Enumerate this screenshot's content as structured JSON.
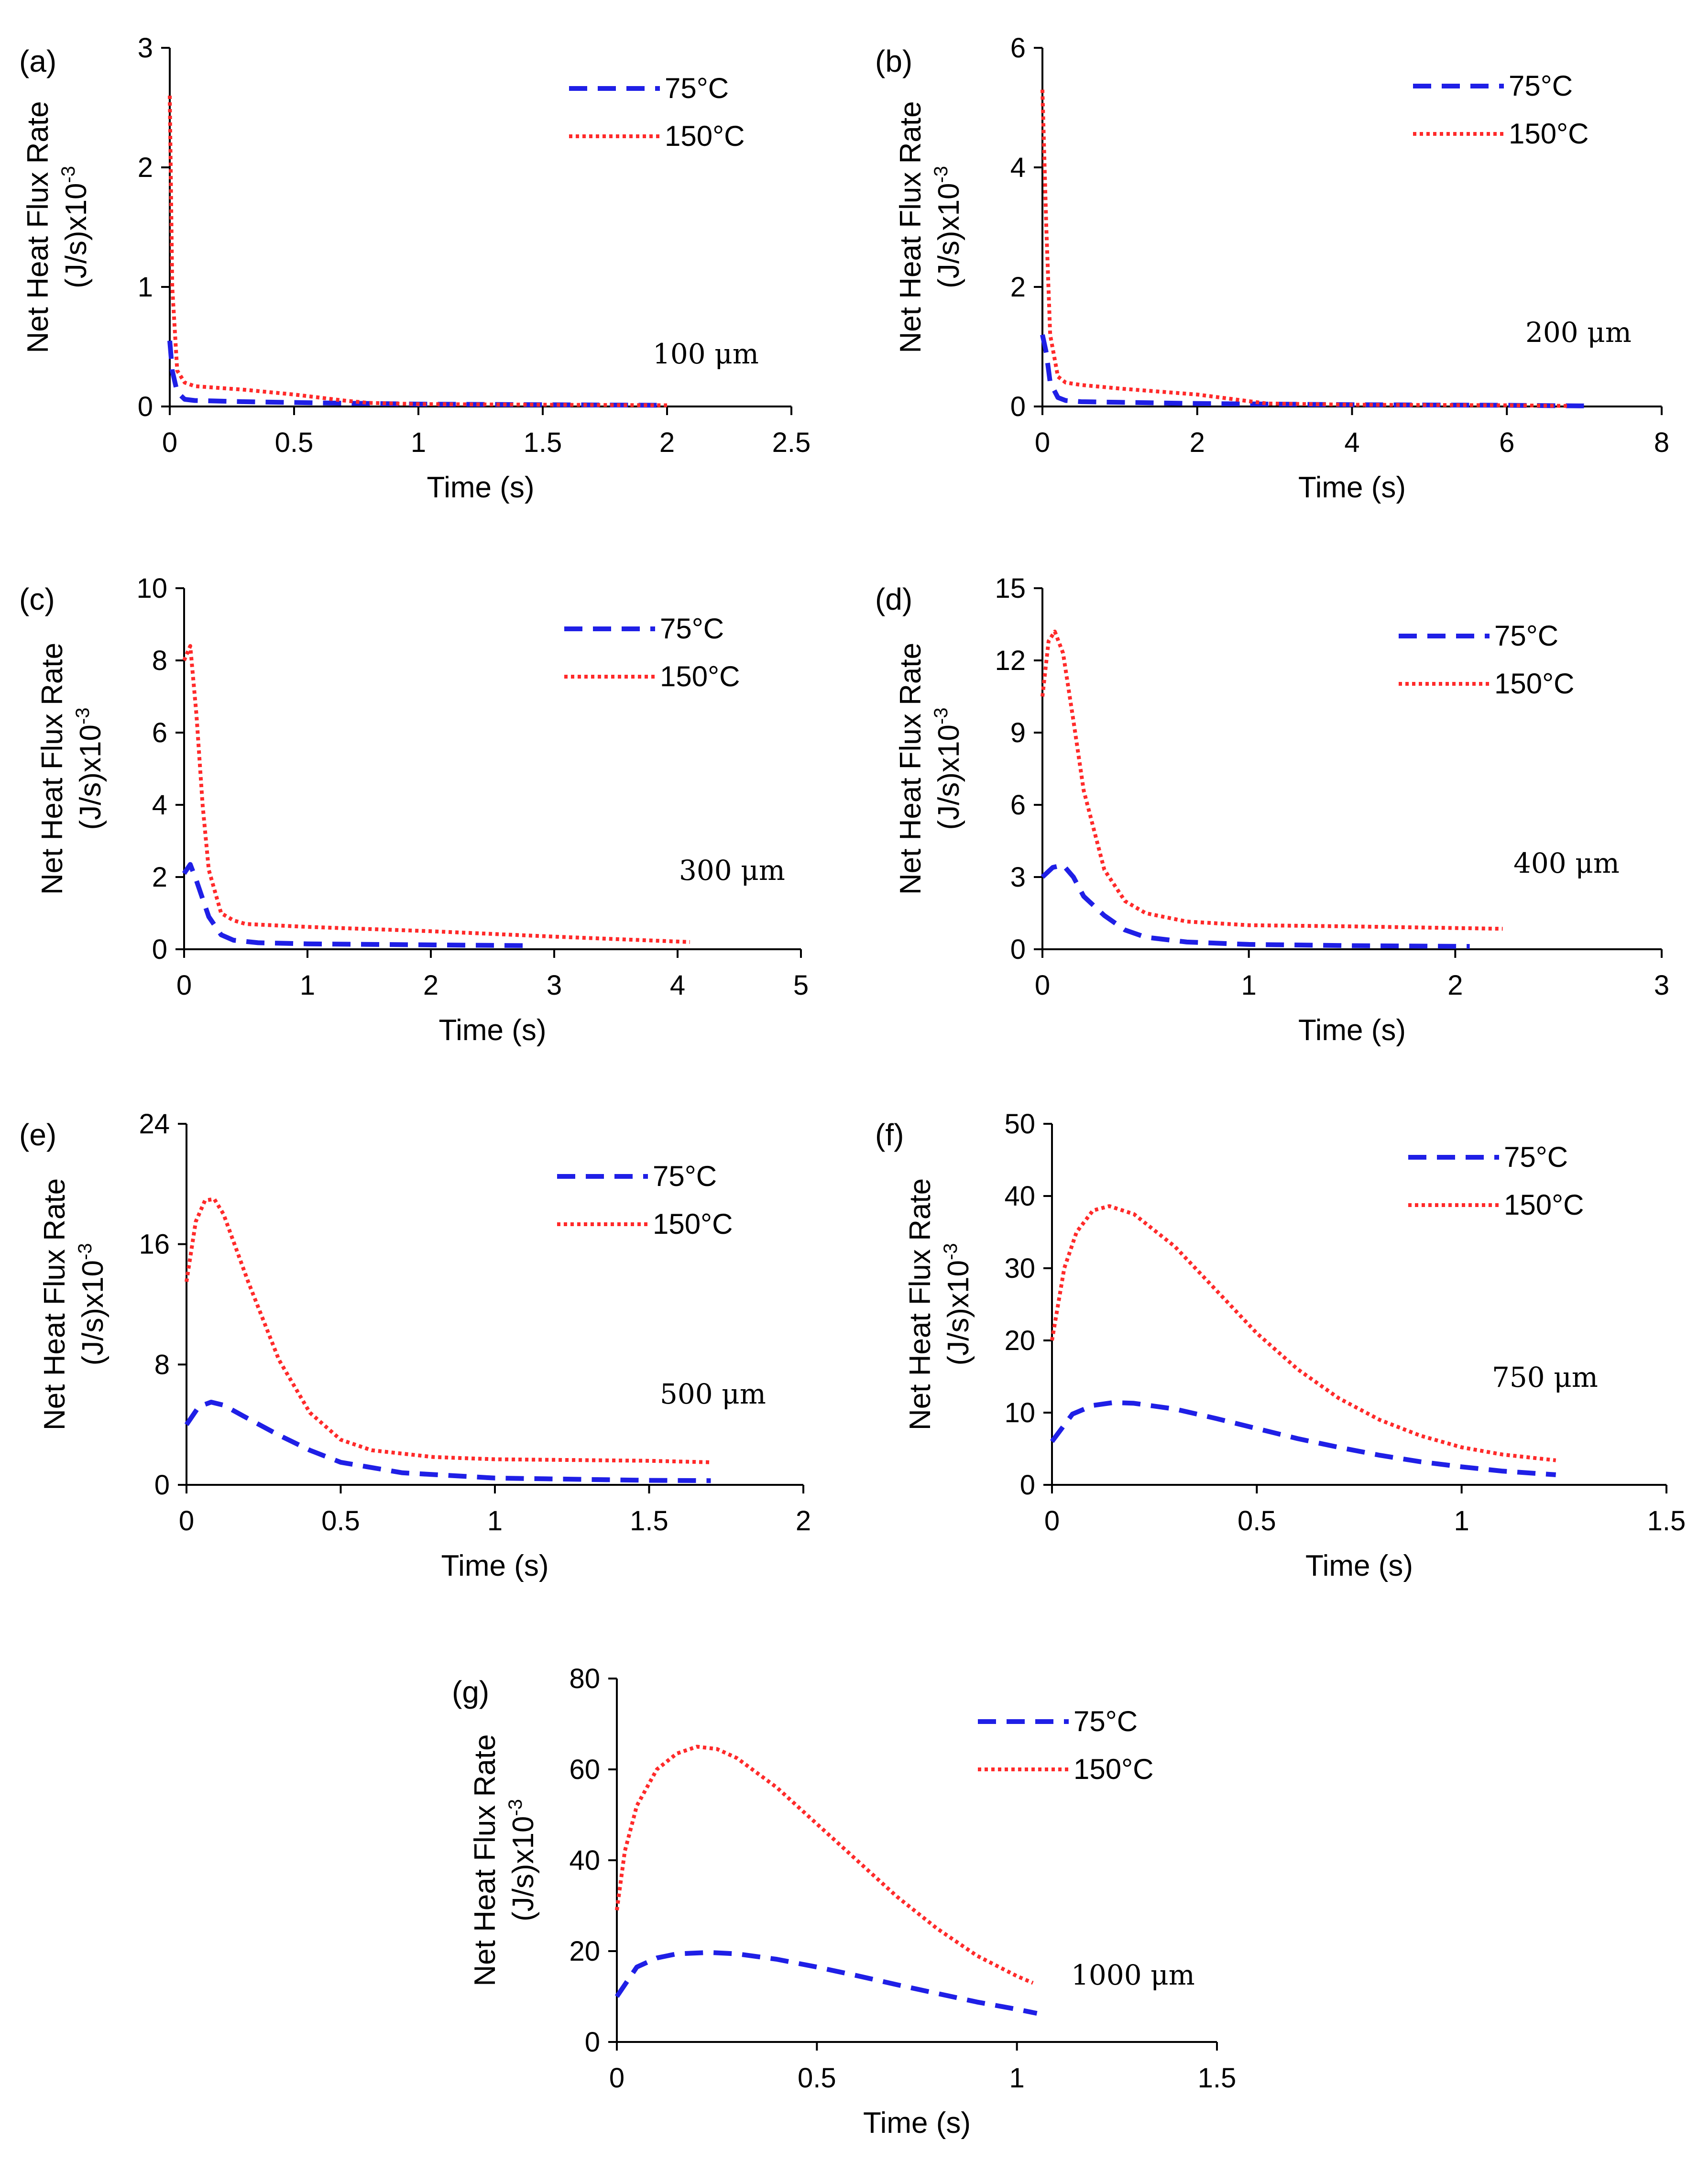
{
  "figure": {
    "description_label": "Net heat flux rate vs time for different thicknesses"
  },
  "chart_data": [
    {
      "type": "line",
      "panel": "(a)",
      "annotation": "100 μm",
      "xlabel": "Time (s)",
      "ylabel_line1": "Net Heat Flux Rate",
      "ylabel_line2": "(J/s)x10",
      "ylabel_sup": "-3",
      "xlim": [
        0,
        2.5
      ],
      "ylim": [
        0,
        3
      ],
      "xticks": [
        0,
        0.5,
        1,
        1.5,
        2,
        2.5
      ],
      "xtick_labels": [
        "0",
        "0.5",
        "1",
        "1.5",
        "2",
        "2.5"
      ],
      "yticks": [
        0,
        1,
        2,
        3
      ],
      "ytick_labels": [
        "0",
        "1",
        "2",
        "3"
      ],
      "series": [
        {
          "name": "75°C",
          "style": "dashed",
          "color": "#1f1fe6",
          "x": [
            0,
            0.01,
            0.03,
            0.06,
            0.1,
            0.3,
            0.6,
            1.0,
            1.5,
            2.0
          ],
          "y": [
            0.55,
            0.3,
            0.12,
            0.06,
            0.05,
            0.04,
            0.03,
            0.02,
            0.015,
            0.01
          ]
        },
        {
          "name": "150°C",
          "style": "dotted",
          "color": "#ff2a2a",
          "x": [
            0,
            0.01,
            0.03,
            0.06,
            0.1,
            0.3,
            0.5,
            0.7,
            0.8,
            1.0,
            1.5,
            2.0
          ],
          "y": [
            2.6,
            1.0,
            0.3,
            0.2,
            0.17,
            0.14,
            0.1,
            0.05,
            0.03,
            0.02,
            0.015,
            0.01
          ]
        }
      ]
    },
    {
      "type": "line",
      "panel": "(b)",
      "annotation": "200 μm",
      "xlabel": "Time (s)",
      "ylabel_line1": "Net Heat Flux Rate",
      "ylabel_line2": "(J/s)x10",
      "ylabel_sup": "-3",
      "xlim": [
        0,
        8
      ],
      "ylim": [
        0,
        6
      ],
      "xticks": [
        0,
        2,
        4,
        6,
        8
      ],
      "xtick_labels": [
        "0",
        "2",
        "4",
        "6",
        "8"
      ],
      "yticks": [
        0,
        2,
        4,
        6
      ],
      "ytick_labels": [
        "0",
        "2",
        "4",
        "6"
      ],
      "series": [
        {
          "name": "75°C",
          "style": "dashed",
          "color": "#1f1fe6",
          "x": [
            0,
            0.05,
            0.1,
            0.2,
            0.3,
            0.5,
            1,
            2,
            4,
            6,
            7
          ],
          "y": [
            1.2,
            0.9,
            0.4,
            0.15,
            0.1,
            0.08,
            0.07,
            0.05,
            0.03,
            0.02,
            0.01
          ]
        },
        {
          "name": "150°C",
          "style": "dotted",
          "color": "#ff2a2a",
          "x": [
            0,
            0.05,
            0.1,
            0.2,
            0.3,
            0.5,
            1,
            2,
            2.9,
            4,
            6,
            6.8
          ],
          "y": [
            5.3,
            3.0,
            1.2,
            0.5,
            0.4,
            0.36,
            0.3,
            0.2,
            0.05,
            0.03,
            0.02,
            0.01
          ]
        }
      ]
    },
    {
      "type": "line",
      "panel": "(c)",
      "annotation": "300 μm",
      "xlabel": "Time (s)",
      "ylabel_line1": "Net Heat Flux Rate",
      "ylabel_line2": "(J/s)x10",
      "ylabel_sup": "-3",
      "xlim": [
        0,
        5
      ],
      "ylim": [
        0,
        10
      ],
      "xticks": [
        0,
        1,
        2,
        3,
        4,
        5
      ],
      "xtick_labels": [
        "0",
        "1",
        "2",
        "3",
        "4",
        "5"
      ],
      "yticks": [
        0,
        2,
        4,
        6,
        8,
        10
      ],
      "ytick_labels": [
        "0",
        "2",
        "4",
        "6",
        "8",
        "10"
      ],
      "series": [
        {
          "name": "75°C",
          "style": "dashed",
          "color": "#1f1fe6",
          "x": [
            0,
            0.05,
            0.1,
            0.2,
            0.3,
            0.4,
            0.6,
            1,
            2,
            2.8
          ],
          "y": [
            2.1,
            2.35,
            1.9,
            0.9,
            0.4,
            0.25,
            0.18,
            0.15,
            0.12,
            0.1
          ]
        },
        {
          "name": "150°C",
          "style": "dotted",
          "color": "#ff2a2a",
          "x": [
            0,
            0.05,
            0.1,
            0.15,
            0.2,
            0.3,
            0.4,
            0.5,
            1,
            2,
            3,
            4.1
          ],
          "y": [
            8.0,
            8.4,
            6.5,
            4.0,
            2.2,
            1.0,
            0.8,
            0.7,
            0.62,
            0.5,
            0.35,
            0.2
          ]
        }
      ]
    },
    {
      "type": "line",
      "panel": "(d)",
      "annotation": "400 μm",
      "xlabel": "Time (s)",
      "ylabel_line1": "Net Heat Flux Rate",
      "ylabel_line2": "(J/s)x10",
      "ylabel_sup": "-3",
      "xlim": [
        0,
        3
      ],
      "ylim": [
        0,
        15
      ],
      "xticks": [
        0,
        1,
        2,
        3
      ],
      "xtick_labels": [
        "0",
        "1",
        "2",
        "3"
      ],
      "yticks": [
        0,
        3,
        6,
        9,
        12,
        15
      ],
      "ytick_labels": [
        "0",
        "3",
        "6",
        "9",
        "12",
        "15"
      ],
      "series": [
        {
          "name": "75°C",
          "style": "dashed",
          "color": "#1f1fe6",
          "x": [
            0,
            0.05,
            0.1,
            0.15,
            0.2,
            0.3,
            0.4,
            0.5,
            0.7,
            1,
            1.5,
            2.07
          ],
          "y": [
            3.0,
            3.4,
            3.5,
            3.0,
            2.2,
            1.4,
            0.8,
            0.5,
            0.3,
            0.2,
            0.15,
            0.12
          ]
        },
        {
          "name": "150°C",
          "style": "dotted",
          "color": "#ff2a2a",
          "x": [
            0,
            0.03,
            0.06,
            0.1,
            0.15,
            0.2,
            0.3,
            0.4,
            0.5,
            0.7,
            1,
            1.5,
            2.23
          ],
          "y": [
            10.5,
            12.8,
            13.2,
            12.3,
            9.5,
            6.6,
            3.3,
            2.0,
            1.5,
            1.15,
            1.0,
            0.95,
            0.85
          ]
        }
      ]
    },
    {
      "type": "line",
      "panel": "(e)",
      "annotation": "500 μm",
      "xlabel": "Time (s)",
      "ylabel_line1": "Net Heat Flux Rate",
      "ylabel_line2": "(J/s)x10",
      "ylabel_sup": "-3",
      "xlim": [
        0,
        2
      ],
      "ylim": [
        0,
        24
      ],
      "xticks": [
        0,
        0.5,
        1,
        1.5,
        2
      ],
      "xtick_labels": [
        "0",
        "0.5",
        "1",
        "1.5",
        "2"
      ],
      "yticks": [
        0,
        8,
        16,
        24
      ],
      "ytick_labels": [
        "0",
        "8",
        "16",
        "24"
      ],
      "series": [
        {
          "name": "75°C",
          "style": "dashed",
          "color": "#1f1fe6",
          "x": [
            0,
            0.04,
            0.08,
            0.12,
            0.2,
            0.3,
            0.4,
            0.5,
            0.7,
            1,
            1.5,
            1.7
          ],
          "y": [
            4.0,
            5.2,
            5.5,
            5.3,
            4.4,
            3.3,
            2.3,
            1.5,
            0.8,
            0.45,
            0.3,
            0.28
          ]
        },
        {
          "name": "150°C",
          "style": "dotted",
          "color": "#ff2a2a",
          "x": [
            0,
            0.03,
            0.06,
            0.09,
            0.12,
            0.2,
            0.3,
            0.4,
            0.5,
            0.6,
            0.8,
            1,
            1.5,
            1.7
          ],
          "y": [
            13.5,
            17.5,
            18.9,
            19.0,
            18.0,
            13.5,
            8.3,
            4.8,
            3.0,
            2.3,
            1.85,
            1.7,
            1.6,
            1.5
          ]
        }
      ]
    },
    {
      "type": "line",
      "panel": "(f)",
      "annotation": "750 μm",
      "xlabel": "Time (s)",
      "ylabel_line1": "Net Heat Flux Rate",
      "ylabel_line2": "(J/s)x10",
      "ylabel_sup": "-3",
      "xlim": [
        0,
        1.5
      ],
      "ylim": [
        0,
        50
      ],
      "xticks": [
        0,
        0.5,
        1,
        1.5
      ],
      "xtick_labels": [
        "0",
        "0.5",
        "1",
        "1.5"
      ],
      "yticks": [
        0,
        10,
        20,
        30,
        40,
        50
      ],
      "ytick_labels": [
        "0",
        "10",
        "20",
        "30",
        "40",
        "50"
      ],
      "series": [
        {
          "name": "75°C",
          "style": "dashed",
          "color": "#1f1fe6",
          "x": [
            0,
            0.05,
            0.1,
            0.15,
            0.2,
            0.3,
            0.4,
            0.5,
            0.6,
            0.7,
            0.8,
            0.9,
            1.0,
            1.1,
            1.23
          ],
          "y": [
            6.0,
            9.8,
            11.0,
            11.4,
            11.3,
            10.5,
            9.2,
            7.8,
            6.4,
            5.2,
            4.1,
            3.2,
            2.5,
            1.9,
            1.4
          ]
        },
        {
          "name": "150°C",
          "style": "dotted",
          "color": "#ff2a2a",
          "x": [
            0,
            0.03,
            0.06,
            0.1,
            0.14,
            0.2,
            0.3,
            0.4,
            0.5,
            0.6,
            0.7,
            0.8,
            0.9,
            1.0,
            1.1,
            1.23
          ],
          "y": [
            20.0,
            30.0,
            35.0,
            38.0,
            38.6,
            37.5,
            33.0,
            27.0,
            21.0,
            16.0,
            12.0,
            9.0,
            6.8,
            5.2,
            4.2,
            3.4
          ]
        }
      ]
    },
    {
      "type": "line",
      "panel": "(g)",
      "annotation": "1000 μm",
      "xlabel": "Time (s)",
      "ylabel_line1": "Net Heat Flux Rate",
      "ylabel_line2": "(J/s)x10",
      "ylabel_sup": "-3",
      "xlim": [
        0,
        1.5
      ],
      "ylim": [
        0,
        80
      ],
      "xticks": [
        0,
        0.5,
        1,
        1.5
      ],
      "xtick_labels": [
        "0",
        "0.5",
        "1",
        "1.5"
      ],
      "yticks": [
        0,
        20,
        40,
        60,
        80
      ],
      "ytick_labels": [
        "0",
        "20",
        "40",
        "60",
        "80"
      ],
      "series": [
        {
          "name": "75°C",
          "style": "dashed",
          "color": "#1f1fe6",
          "x": [
            0,
            0.05,
            0.1,
            0.15,
            0.23,
            0.3,
            0.4,
            0.5,
            0.6,
            0.7,
            0.8,
            0.9,
            1.0,
            1.05
          ],
          "y": [
            10.0,
            16.5,
            18.5,
            19.4,
            19.7,
            19.4,
            18.2,
            16.5,
            14.6,
            12.6,
            10.7,
            8.8,
            7.2,
            6.3
          ]
        },
        {
          "name": "150°C",
          "style": "dotted",
          "color": "#ff2a2a",
          "x": [
            0,
            0.02,
            0.05,
            0.1,
            0.15,
            0.2,
            0.25,
            0.3,
            0.4,
            0.5,
            0.6,
            0.7,
            0.8,
            0.9,
            1.0,
            1.04
          ],
          "y": [
            29.0,
            42.0,
            52.0,
            60.0,
            63.5,
            65.0,
            64.5,
            62.5,
            56.0,
            48.0,
            40.0,
            32.0,
            25.0,
            19.0,
            14.5,
            13.0
          ]
        }
      ]
    }
  ]
}
